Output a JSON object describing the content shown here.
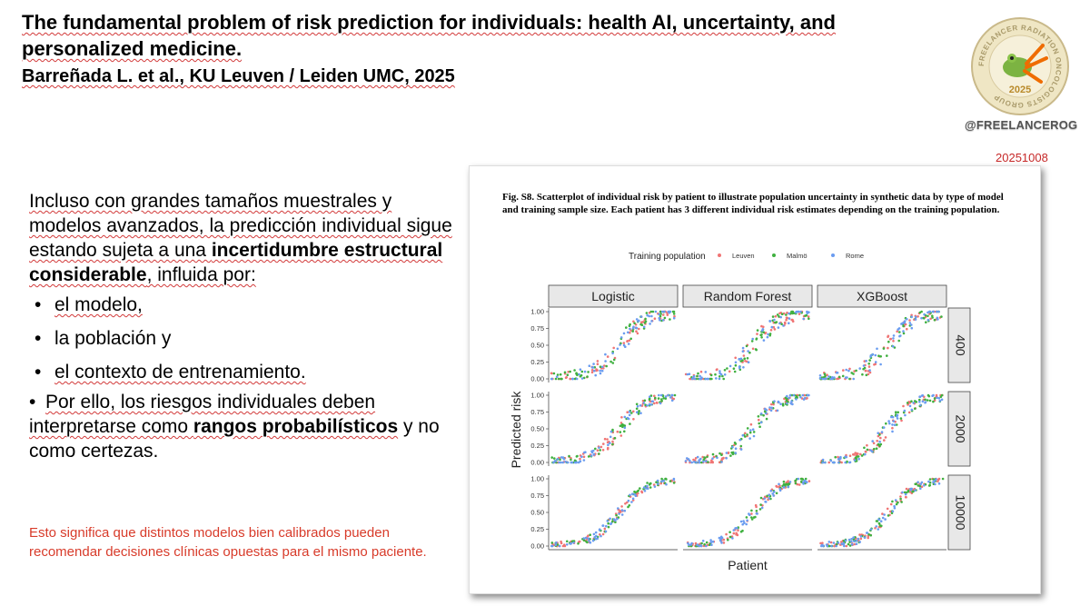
{
  "header": {
    "title": "The fundamental problem of risk prediction for individuals: health AI, uncertainty, and personalized medicine.",
    "subtitle": "Barreñada L. et al., KU Leuven / Leiden UMC, 2025"
  },
  "logo": {
    "ring_text": "FREELANCER RADIATION ONCOLOGISTS GROUP",
    "year": "2025"
  },
  "handle": "@FREELANCEROG",
  "date": "20251008",
  "body": {
    "intro_1": "Incluso con grandes tamaños muestrales y modelos avanzados, la predicción individual sigue estando sujeta a una ",
    "intro_bold": "incertidumbre estructural considerable",
    "intro_2": ", influida por:",
    "bullets": [
      "el modelo,",
      "la población y",
      "el contexto de entrenamiento."
    ],
    "conclusion_1": "Por ello, los riesgos individuales deben interpretarse como ",
    "conclusion_bold": "rangos probabilísticos",
    "conclusion_2": " y no como certezas."
  },
  "note": "Esto significa que distintos modelos bien calibrados pueden recomendar decisiones clínicas opuestas para el mismo paciente.",
  "figure": {
    "caption": "Fig. S8. Scatterplot of individual risk by patient to illustrate population uncertainty in synthetic data by type of model and training sample size. Each patient has 3 different individual risk estimates depending on the training population."
  },
  "chart_data": {
    "type": "scatter",
    "legend_title": "Training population",
    "legend_position": "top",
    "series": [
      {
        "name": "Leuven",
        "color": "#f07474"
      },
      {
        "name": "Malmö",
        "color": "#3fb03f"
      },
      {
        "name": "Rome",
        "color": "#6a9cf0"
      }
    ],
    "facet_columns": [
      "Logistic",
      "Random Forest",
      "XGBoost"
    ],
    "facet_rows": [
      "400",
      "2000",
      "10000"
    ],
    "xlabel": "Patient",
    "ylabel": "Predicted risk",
    "y_ticks": [
      "0.00",
      "0.25",
      "0.50",
      "0.75",
      "1.00"
    ],
    "ylim": [
      0,
      1
    ],
    "grid": false,
    "points_per_series_per_panel": 60,
    "note": "Each panel shows patients sorted along x with sigmoid-shaped increasing predicted risk from ~0 to ~1; points from the three training populations scatter around the curve."
  }
}
